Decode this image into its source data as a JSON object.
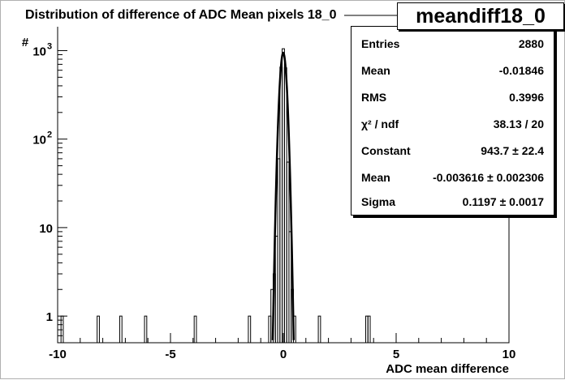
{
  "chart_data": {
    "type": "histogram",
    "title": "Distribution of difference of ADC Mean   pixels 18_0",
    "xlabel": "ADC mean difference",
    "ylabel": "#",
    "xlim": [
      -10,
      10
    ],
    "ylim": [
      0.5,
      2500
    ],
    "yscale": "log",
    "x_ticks": [
      "-10",
      "-5",
      "0",
      "5",
      "10"
    ],
    "y_ticks": [
      {
        "base": "1",
        "exp": ""
      },
      {
        "base": "10",
        "exp": ""
      },
      {
        "base": "10",
        "exp": "2"
      },
      {
        "base": "10",
        "exp": "3"
      }
    ],
    "histogram": {
      "name": "meandiff18_0",
      "bin_width": 0.1,
      "bins": [
        {
          "x": -9.8,
          "count": 1
        },
        {
          "x": -8.2,
          "count": 1
        },
        {
          "x": -7.2,
          "count": 1
        },
        {
          "x": -6.1,
          "count": 1
        },
        {
          "x": -3.9,
          "count": 1
        },
        {
          "x": -1.5,
          "count": 1
        },
        {
          "x": -0.6,
          "count": 1
        },
        {
          "x": -0.5,
          "count": 2
        },
        {
          "x": -0.4,
          "count": 3
        },
        {
          "x": -0.3,
          "count": 8
        },
        {
          "x": -0.2,
          "count": 60
        },
        {
          "x": -0.1,
          "count": 650
        },
        {
          "x": 0.0,
          "count": 1050
        },
        {
          "x": 0.1,
          "count": 640
        },
        {
          "x": 0.2,
          "count": 55
        },
        {
          "x": 0.3,
          "count": 9
        },
        {
          "x": 0.4,
          "count": 2
        },
        {
          "x": 0.5,
          "count": 1
        },
        {
          "x": 1.6,
          "count": 1
        },
        {
          "x": 3.7,
          "count": 1
        },
        {
          "x": 3.8,
          "count": 1
        }
      ]
    },
    "fit": {
      "type": "gaussian",
      "constant": 943.7,
      "mean": -0.003616,
      "sigma": 0.1197
    },
    "stats": {
      "name": "meandiff18_0",
      "rows": [
        {
          "label": "Entries",
          "value": "2880"
        },
        {
          "label": "Mean",
          "value": "-0.01846"
        },
        {
          "label": "RMS",
          "value": "0.3996"
        },
        {
          "label": "χ² / ndf",
          "value": "38.13 / 20"
        },
        {
          "label": "Constant",
          "value": "943.7 ± 22.4"
        },
        {
          "label": "Mean",
          "value": "-0.003616 ± 0.002306"
        },
        {
          "label": "Sigma",
          "value": "0.1197 ± 0.0017"
        }
      ]
    },
    "grid": false,
    "legend_placement": "top-right",
    "colors": {
      "line": "#000000",
      "background": "#ffffff",
      "frame_shadow": "#000000"
    }
  }
}
